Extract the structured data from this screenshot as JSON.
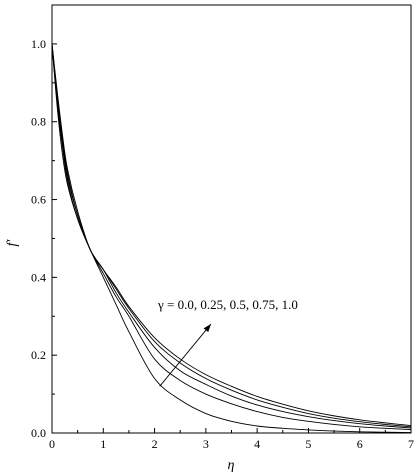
{
  "chart_data": {
    "type": "line",
    "xlabel": "η",
    "ylabel": "f′",
    "xlim": [
      0,
      7
    ],
    "ylim": [
      0,
      1.1
    ],
    "x_ticks": [
      0,
      1,
      2,
      3,
      4,
      5,
      6,
      7
    ],
    "y_ticks": [
      0.0,
      0.2,
      0.4,
      0.6,
      0.8,
      1.0
    ],
    "x_tick_labels": [
      "0",
      "1",
      "2",
      "3",
      "4",
      "5",
      "6",
      "7"
    ],
    "y_tick_labels": [
      "0.0",
      "0.2",
      "0.4",
      "0.6",
      "0.8",
      "1.0"
    ],
    "grid": false,
    "legend": "none",
    "annotation": {
      "text": "γ = 0.0, 0.25, 0.5, 0.75, 1.0",
      "arrow_from": [
        2.1,
        0.12
      ],
      "arrow_to": [
        3.1,
        0.28
      ]
    },
    "x": [
      0,
      0.1,
      0.2,
      0.3,
      0.5,
      0.75,
      1.0,
      1.25,
      1.5,
      2.0,
      2.5,
      3.0,
      3.5,
      4.0,
      4.5,
      5.0,
      5.5,
      6.0,
      6.5,
      7.0
    ],
    "series": [
      {
        "values": [
          1.0,
          0.84,
          0.72,
          0.64,
          0.55,
          0.47,
          0.4,
          0.33,
          0.26,
          0.14,
          0.085,
          0.05,
          0.03,
          0.018,
          0.012,
          0.008,
          0.005,
          0.003,
          0.002,
          0.001
        ]
      },
      {
        "values": [
          1.0,
          0.85,
          0.74,
          0.65,
          0.55,
          0.47,
          0.41,
          0.35,
          0.3,
          0.19,
          0.135,
          0.1,
          0.075,
          0.055,
          0.04,
          0.03,
          0.022,
          0.016,
          0.012,
          0.009
        ]
      },
      {
        "values": [
          1.0,
          0.86,
          0.75,
          0.66,
          0.56,
          0.47,
          0.42,
          0.36,
          0.31,
          0.22,
          0.16,
          0.125,
          0.095,
          0.072,
          0.055,
          0.042,
          0.032,
          0.024,
          0.018,
          0.013
        ]
      },
      {
        "values": [
          1.0,
          0.87,
          0.76,
          0.67,
          0.56,
          0.47,
          0.42,
          0.37,
          0.32,
          0.235,
          0.18,
          0.14,
          0.11,
          0.085,
          0.066,
          0.05,
          0.038,
          0.029,
          0.022,
          0.016
        ]
      },
      {
        "values": [
          1.0,
          0.88,
          0.77,
          0.68,
          0.57,
          0.47,
          0.42,
          0.375,
          0.325,
          0.245,
          0.19,
          0.15,
          0.12,
          0.094,
          0.074,
          0.057,
          0.044,
          0.034,
          0.026,
          0.019
        ]
      }
    ]
  }
}
